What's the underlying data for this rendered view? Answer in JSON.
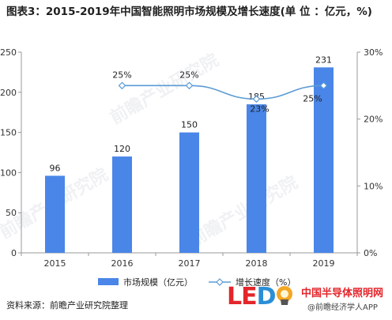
{
  "title": "图表3：2015-2019年中国智能照明市场规模及增长速度(单 位 ：亿元，%)",
  "source": "资料来源：前瞻产业研究院整理",
  "brand": {
    "logo_text": "LED",
    "name": "中国半导体照明网",
    "watermark": "@前瞻经济学人APP"
  },
  "watermark_text": "前瞻产业研究院",
  "colors": {
    "bar": "#4a86e8",
    "line": "#5b9bd5",
    "axis": "#999999",
    "text": "#1f1f1f"
  },
  "chart_data": {
    "type": "bar",
    "categories": [
      "2015",
      "2016",
      "2017",
      "2018",
      "2019"
    ],
    "series": [
      {
        "name": "市场规模（亿元）",
        "type": "bar",
        "axis": "left",
        "values": [
          96,
          120,
          150,
          185,
          231
        ]
      },
      {
        "name": "增长速度（%）",
        "type": "line",
        "axis": "right",
        "values": [
          null,
          25,
          25,
          23,
          25
        ]
      }
    ],
    "bar_labels": [
      "96",
      "120",
      "150",
      "185",
      "231"
    ],
    "line_labels": [
      "",
      "25%",
      "25%",
      "23%",
      "25%"
    ],
    "left_axis": {
      "ylim": [
        0,
        250
      ],
      "ticks": [
        "0",
        "50",
        "100",
        "150",
        "200",
        "250"
      ]
    },
    "right_axis": {
      "ylim": [
        0,
        30
      ],
      "ticks": [
        "0%",
        "10%",
        "20%",
        "30%"
      ]
    },
    "legend_position": "bottom",
    "grid": false
  }
}
